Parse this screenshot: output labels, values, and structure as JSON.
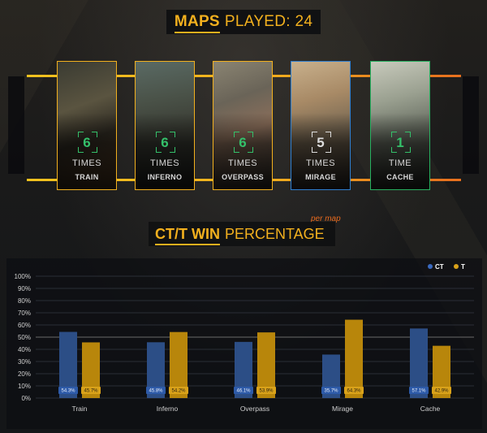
{
  "header": {
    "title_bold": "MAPS",
    "title_light": "PLAYED: 24"
  },
  "maps": [
    {
      "name": "TRAIN",
      "count": "6",
      "unit": "TIMES",
      "border_color": "#f2b01e",
      "count_color": "#34c06a"
    },
    {
      "name": "INFERNO",
      "count": "6",
      "unit": "TIMES",
      "border_color": "#f2b01e",
      "count_color": "#34c06a"
    },
    {
      "name": "OVERPASS",
      "count": "6",
      "unit": "TIMES",
      "border_color": "#f2b01e",
      "count_color": "#34c06a"
    },
    {
      "name": "MIRAGE",
      "count": "5",
      "unit": "TIMES",
      "border_color": "#2f7fd0",
      "count_color": "#dcdcdc"
    },
    {
      "name": "CACHE",
      "count": "1",
      "unit": "TIME",
      "border_color": "#28b060",
      "count_color": "#34c06a"
    }
  ],
  "section2": {
    "title_bold": "CT/T WIN",
    "title_light": "PERCENTAGE",
    "subtitle": "per map"
  },
  "colors": {
    "accent": "#f2b01e",
    "ct": "#2c4e86",
    "t": "#b8860b",
    "ct_label_bg": "#2d5aa8",
    "t_label_bg": "#d9a21a"
  },
  "chart_data": {
    "type": "bar",
    "categories": [
      "Train",
      "Inferno",
      "Overpass",
      "Mirage",
      "Cache"
    ],
    "series": [
      {
        "name": "CT",
        "values": [
          54.3,
          45.8,
          46.1,
          35.7,
          57.1
        ],
        "labels": [
          "54.3%",
          "45.8%",
          "46.1%",
          "35.7%",
          "57.1%"
        ]
      },
      {
        "name": "T",
        "values": [
          45.7,
          54.2,
          53.9,
          64.3,
          42.9
        ],
        "labels": [
          "45.7%",
          "54.2%",
          "53.9%",
          "64.3%",
          "42.9%"
        ]
      }
    ],
    "yticks": [
      "0%",
      "10%",
      "20%",
      "30%",
      "40%",
      "50%",
      "60%",
      "70%",
      "80%",
      "90%",
      "100%"
    ],
    "ylim": [
      0,
      100
    ],
    "legend_position": "top-right",
    "grid": true,
    "reference_line": 50
  }
}
